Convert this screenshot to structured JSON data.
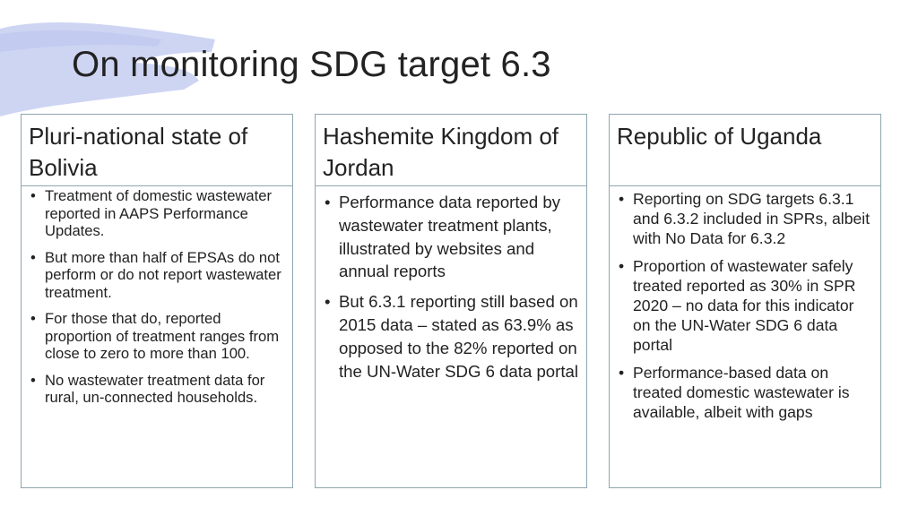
{
  "title": "On monitoring SDG target 6.3",
  "colors": {
    "brush": "#c9d0f2",
    "border": "#8fa6b0",
    "text": "#222222"
  },
  "columns": [
    {
      "heading": "Pluri-national state of Bolivia",
      "bullets": [
        "Treatment of domestic wastewater reported in AAPS Performance Updates.",
        "But more than half of EPSAs do not perform or do not report wastewater treatment.",
        "For those that do, reported proportion of treatment ranges from close to zero to more than 100.",
        "No wastewater treatment data for rural, un-connected households."
      ]
    },
    {
      "heading": "Hashemite Kingdom of Jordan",
      "bullets": [
        "Performance data reported by wastewater treatment plants, illustrated by websites and annual reports",
        "But 6.3.1 reporting still based on 2015 data – stated as 63.9% as opposed to the 82% reported on the UN-Water SDG 6 data portal"
      ]
    },
    {
      "heading": "Republic of Uganda",
      "bullets": [
        "Reporting on SDG targets 6.3.1 and 6.3.2 included in SPRs, albeit with No Data for 6.3.2",
        "Proportion of wastewater safely treated reported as 30% in SPR 2020 – no data for this indicator on the UN-Water SDG 6 data portal",
        "Performance-based data on treated domestic wastewater is available, albeit with gaps"
      ]
    }
  ]
}
